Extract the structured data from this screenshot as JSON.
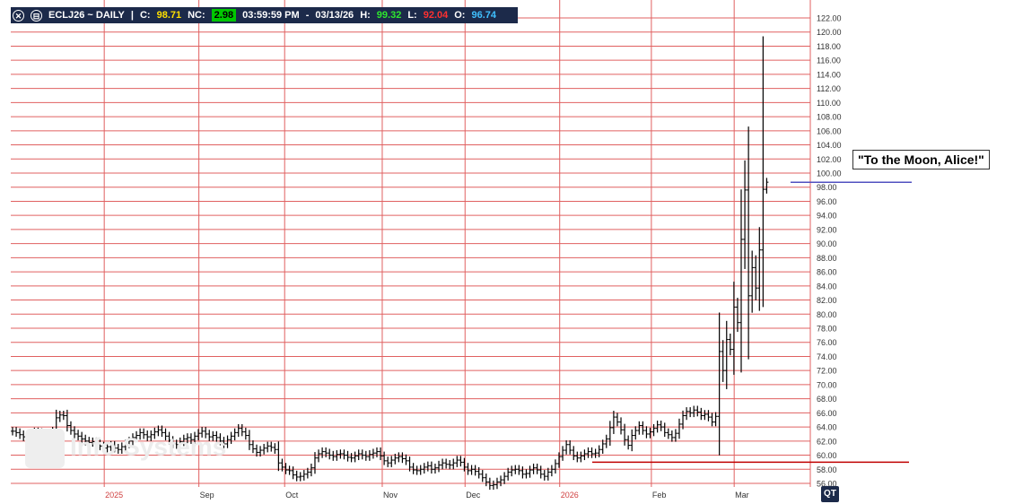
{
  "header": {
    "symbol_label": "ECLJ26 ~ DAILY",
    "separator": "|",
    "close_label": "C:",
    "close_value": "98.71",
    "nc_label": "NC:",
    "nc_value": "2.98",
    "time": "03:59:59 PM",
    "dash": "-",
    "date": "03/13/26",
    "high_label": "H:",
    "high_value": "99.32",
    "low_label": "L:",
    "low_value": "92.04",
    "open_label": "O:",
    "open_value": "96.74",
    "close_icon": "close-box-icon",
    "minimize_icon": "minimize-box-icon"
  },
  "annotation": "\"To the Moon, Alice!\"",
  "watermark": "Info Systems",
  "logo_text": "QT",
  "colors": {
    "grid": "#e06060",
    "bars": "#000000",
    "header_bg": "#1c2a4a",
    "reference_line": "#c00000",
    "annotation_line": "#5050c0",
    "axis_text": "#333333",
    "year_label": "#d04040"
  },
  "chart_data": {
    "type": "ohlc",
    "symbol": "ECLJ26",
    "period": "DAILY",
    "y_axis": {
      "min": 56,
      "max": 122,
      "step": 2,
      "position": "right",
      "decimals": 2
    },
    "grid": true,
    "x_labels": [
      {
        "label": "2025",
        "date": "2025-08-01",
        "year": true
      },
      {
        "label": "Sep",
        "date": "2025-09-02",
        "year": false
      },
      {
        "label": "Oct",
        "date": "2025-10-01",
        "year": false
      },
      {
        "label": "Nov",
        "date": "2025-11-03",
        "year": false
      },
      {
        "label": "Dec",
        "date": "2025-12-01",
        "year": false
      },
      {
        "label": "2026",
        "date": "2026-01-02",
        "year": true
      },
      {
        "label": "Feb",
        "date": "2026-02-02",
        "year": false
      },
      {
        "label": "Mar",
        "date": "2026-03-02",
        "year": false
      }
    ],
    "closes": [
      63.4,
      63.2,
      62.9,
      62.6,
      62.8,
      63.1,
      63.3,
      63.2,
      63.0,
      62.9,
      63.1,
      63.4,
      65.3,
      65.7,
      65.6,
      64.2,
      63.5,
      63.0,
      62.7,
      62.3,
      62.0,
      61.8,
      61.9,
      61.6,
      61.3,
      61.0,
      61.2,
      61.4,
      61.0,
      60.8,
      61.2,
      61.6,
      62.0,
      62.5,
      62.8,
      63.2,
      62.9,
      62.6,
      62.9,
      63.3,
      63.6,
      63.2,
      62.7,
      62.1,
      61.6,
      61.5,
      61.9,
      62.3,
      62.5,
      62.2,
      62.7,
      63.1,
      63.4,
      63.0,
      62.6,
      62.8,
      62.5,
      62.0,
      61.6,
      62.2,
      62.7,
      63.2,
      63.8,
      63.3,
      62.8,
      61.5,
      60.9,
      60.4,
      60.7,
      61.0,
      61.3,
      61.1,
      60.8,
      58.9,
      58.3,
      57.9,
      57.8,
      57.2,
      56.9,
      57.0,
      57.3,
      57.6,
      58.2,
      59.6,
      60.2,
      60.5,
      60.3,
      60.0,
      59.8,
      60.1,
      60.2,
      60.0,
      59.7,
      59.6,
      59.9,
      60.2,
      60.0,
      59.8,
      60.1,
      60.3,
      60.5,
      59.9,
      59.2,
      58.9,
      59.3,
      59.6,
      59.8,
      59.5,
      59.2,
      58.3,
      57.9,
      57.8,
      58.0,
      58.3,
      58.5,
      58.0,
      58.2,
      58.6,
      58.9,
      58.7,
      58.6,
      58.9,
      59.3,
      59.0,
      58.3,
      57.8,
      58.0,
      57.7,
      57.3,
      56.8,
      56.2,
      55.7,
      55.8,
      56.2,
      56.5,
      57.0,
      57.6,
      57.9,
      58.0,
      57.8,
      57.3,
      57.4,
      57.9,
      58.2,
      57.9,
      57.3,
      57.0,
      57.6,
      58.0,
      58.8,
      59.8,
      60.7,
      61.5,
      60.7,
      59.9,
      59.6,
      59.9,
      60.2,
      60.5,
      60.2,
      60.3,
      60.8,
      61.6,
      62.3,
      63.9,
      65.4,
      64.7,
      63.6,
      62.2,
      61.4,
      62.8,
      63.5,
      64.2,
      63.5,
      63.0,
      63.3,
      63.8,
      64.3,
      64.0,
      63.2,
      62.9,
      62.5,
      63.1,
      64.4,
      65.6,
      66.2,
      66.0,
      66.4,
      66.1,
      65.6,
      65.8,
      65.4,
      64.7,
      65.5,
      74.7,
      72.0,
      76.4,
      75.0,
      81.0,
      78.8,
      90.6,
      97.6,
      82.6,
      86.6,
      83.7,
      89.1,
      97.7,
      98.71
    ],
    "spikes": [
      {
        "index": 206,
        "high": 119.4,
        "low": 81.0
      },
      {
        "index": 208,
        "high": 91.5,
        "low": 77.0
      },
      {
        "index": 212,
        "high": 99.32,
        "low": 92.04
      }
    ],
    "reference_line": {
      "value": 59.0,
      "label": ""
    },
    "annotation_line": {
      "value": 98.7
    }
  }
}
